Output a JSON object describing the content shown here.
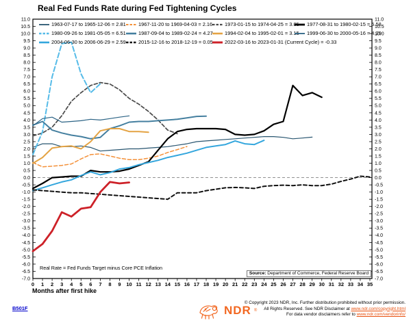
{
  "title": "Real Fed Funds Rate during Fed Tightening Cycles",
  "annotation": "Real Rate = Fed Funds Target minus Core PCE Inflation",
  "source": {
    "label": "Source:",
    "text": " Department of Commerce, Federal Reserve Board"
  },
  "x_axis_title": "Months after first hike",
  "footer": {
    "chart_id": "B501F",
    "logo_text": "NDR",
    "logo_registered_mark": "®",
    "copyright_line1": "© Copyright 2023 NDR, Inc. Further distribution prohibited without prior permission.",
    "copyright_line2_prefix": "All Rights Reserved. See NDR Disclaimer at ",
    "copyright_line2_link": "www.ndr.com/copyright.html",
    "copyright_line3_prefix": "For data vendor disclaimers refer to ",
    "copyright_line3_link": "www.ndr.com/vendorinfo/"
  },
  "chart_data": {
    "type": "line",
    "title": "Real Fed Funds Rate during Fed Tightening Cycles",
    "xlabel": "Months after first hike",
    "ylabel": "",
    "xlim": [
      0,
      35
    ],
    "ylim": [
      -7.0,
      11.0
    ],
    "y_tick_step": 0.5,
    "x_tick_step": 1,
    "grid": false,
    "zero_line": {
      "value": 0.0,
      "style": "dashed",
      "color": "#808080"
    },
    "legend_position": "top-inside",
    "axis_label_color": "#000000",
    "series": [
      {
        "label": "1963-07-17 to 1965-12-06 = 2.81",
        "final_value": 2.81,
        "color": "#27546f",
        "width": 1.2,
        "dash": null,
        "values": [
          2.1,
          2.35,
          2.35,
          2.15,
          2.15,
          2.2,
          2.1,
          1.85,
          1.9,
          1.95,
          2.0,
          2.0,
          2.05,
          2.1,
          2.15,
          2.25,
          2.35,
          2.5,
          2.55,
          2.6,
          2.65,
          2.7,
          2.75,
          2.8,
          2.85,
          2.85,
          2.8,
          2.7,
          2.75,
          2.81
        ]
      },
      {
        "label": "1967-11-20 to 1969-04-03 = 2.16",
        "final_value": 2.16,
        "color": "#f49038",
        "width": 1.5,
        "dash": "5,3",
        "values": [
          1.05,
          0.75,
          0.8,
          0.85,
          0.95,
          1.3,
          1.6,
          1.65,
          1.5,
          1.35,
          1.25,
          1.25,
          1.35,
          1.5,
          1.75,
          1.95,
          2.16
        ]
      },
      {
        "label": "1973-01-15 to 1974-04-25 = 3.05",
        "final_value": 3.05,
        "color": "#4a4a4a",
        "width": 1.7,
        "dash": "5,3",
        "values": [
          2.9,
          3.1,
          3.5,
          4.3,
          5.3,
          5.9,
          6.4,
          6.6,
          6.5,
          6.1,
          5.5,
          5.1,
          4.6,
          4.0,
          3.3,
          3.05
        ]
      },
      {
        "label": "1977-08-31 to 1980-02-15 = 5.58",
        "final_value": 5.58,
        "color": "#000000",
        "width": 2.2,
        "dash": null,
        "values": [
          -0.75,
          -0.4,
          0.0,
          0.05,
          0.1,
          0.1,
          0.5,
          0.4,
          0.4,
          0.45,
          0.6,
          0.85,
          1.1,
          1.9,
          2.7,
          3.2,
          3.35,
          3.4,
          3.4,
          3.4,
          3.35,
          3.0,
          2.95,
          3.0,
          3.25,
          3.7,
          3.9,
          6.4,
          5.7,
          5.9,
          5.58
        ]
      },
      {
        "label": "1980-09-26 to 1981-05-05 = 6.51",
        "final_value": 6.51,
        "color": "#55bbe8",
        "width": 2.0,
        "dash": "7,3.5",
        "values": [
          1.6,
          3.2,
          7.0,
          9.3,
          9.4,
          7.2,
          5.9,
          6.51
        ]
      },
      {
        "label": "1987-09-04 to 1989-02-24 = 4.27",
        "final_value": 4.27,
        "color": "#447f9f",
        "width": 2.0,
        "dash": null,
        "values": [
          3.65,
          3.9,
          3.3,
          3.1,
          2.95,
          2.85,
          2.7,
          2.8,
          3.4,
          3.6,
          3.85,
          3.9,
          3.9,
          3.95,
          4.0,
          4.05,
          4.15,
          4.25,
          4.27
        ]
      },
      {
        "label": "1994-02-04 to 1995-02-01 = 3.15",
        "final_value": 3.15,
        "color": "#e4a343",
        "width": 2.0,
        "dash": null,
        "values": [
          1.0,
          1.4,
          2.05,
          2.15,
          2.2,
          2.0,
          2.5,
          3.25,
          3.4,
          3.4,
          3.2,
          3.2,
          3.15
        ]
      },
      {
        "label": "1999-06-30 to 2000-05-16 = 4.29",
        "final_value": 4.29,
        "color": "#2a6284",
        "width": 1.2,
        "dash": null,
        "values": [
          3.6,
          4.1,
          4.2,
          3.85,
          3.9,
          3.95,
          4.05,
          4.0,
          4.1,
          4.2,
          4.29
        ]
      },
      {
        "label": "2004-06-30 to 2006-06-29 = 2.59",
        "final_value": 2.59,
        "color": "#33a6dd",
        "width": 2.0,
        "dash": null,
        "values": [
          -0.9,
          -0.7,
          -0.5,
          -0.3,
          -0.15,
          0.15,
          0.4,
          0.2,
          0.35,
          0.6,
          0.7,
          0.9,
          1.05,
          1.2,
          1.4,
          1.55,
          1.7,
          1.9,
          2.1,
          2.2,
          2.3,
          2.55,
          2.35,
          2.3,
          2.59
        ]
      },
      {
        "label": "2015-12-16 to 2018-12-19 = 0.05",
        "final_value": 0.05,
        "color": "#101010",
        "width": 2.0,
        "dash": "5,3.5",
        "values": [
          -0.85,
          -0.9,
          -0.95,
          -1.0,
          -1.05,
          -1.05,
          -1.1,
          -1.15,
          -1.2,
          -1.25,
          -1.3,
          -1.35,
          -1.4,
          -1.45,
          -1.5,
          -1.05,
          -1.05,
          -1.05,
          -0.9,
          -0.8,
          -0.7,
          -0.68,
          -0.7,
          -0.75,
          -0.6,
          -0.55,
          -0.52,
          -0.55,
          -0.5,
          -0.55,
          -0.55,
          -0.45,
          -0.26,
          -0.1,
          0.1,
          0.05
        ]
      },
      {
        "label": "2022-03-16 to 2023-01-31 (Current Cycle) = -0.33",
        "final_value": -0.33,
        "color": "#cd2128",
        "width": 2.8,
        "dash": null,
        "values": [
          -5.1,
          -4.6,
          -3.7,
          -2.4,
          -2.7,
          -2.15,
          -2.05,
          -1.0,
          -0.3,
          -0.4,
          -0.33
        ]
      }
    ]
  }
}
